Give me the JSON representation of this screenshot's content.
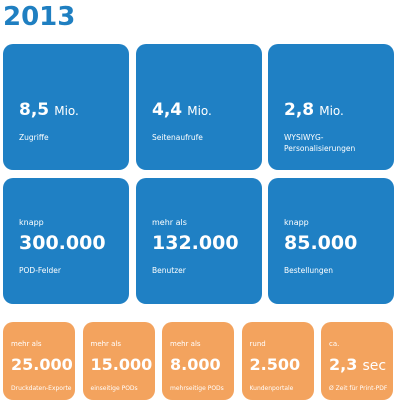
{
  "title": "2013",
  "top_tiles": [
    {
      "value": "8,5",
      "unit": "Mio.",
      "label": "Zugriffe"
    },
    {
      "value": "4,4",
      "unit": "Mio.",
      "label": "Seitenaufrufe"
    },
    {
      "value": "2,8",
      "unit": "Mio.",
      "label": "WYSIWYG-Personalisierungen"
    }
  ],
  "middle_tiles": [
    {
      "prefix": "knapp",
      "value": "300.000",
      "label": "POD-Felder"
    },
    {
      "prefix": "mehr als",
      "value": "132.000",
      "label": "Benutzer"
    },
    {
      "prefix": "knapp",
      "value": "85.000",
      "label": "Bestellungen"
    }
  ],
  "bottom_tiles": [
    {
      "prefix": "mehr als",
      "value": "25.000",
      "label": "Druckdaten-Exporte"
    },
    {
      "prefix": "mehr als",
      "value": "15.000",
      "label": "einseitige PODs"
    },
    {
      "prefix": "mehr als",
      "value": "8.000",
      "label": "mehrseitige PODs"
    },
    {
      "prefix": "rund",
      "value": "2.500",
      "label": "Kundenportale"
    },
    {
      "prefix": "ca.",
      "value": "2,3",
      "unit": "sec",
      "label": "Ø Zeit für Print-PDF"
    }
  ]
}
